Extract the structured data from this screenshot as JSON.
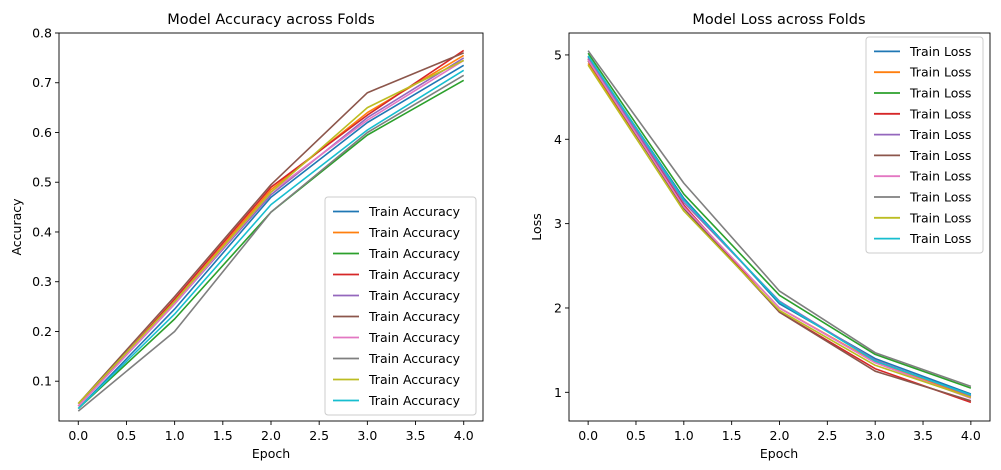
{
  "chart_data": [
    {
      "type": "line",
      "title": "Model Accuracy across Folds",
      "xlabel": "Epoch",
      "ylabel": "Accuracy",
      "xlim": [
        -0.2,
        4.2
      ],
      "ylim": [
        0.02,
        0.8
      ],
      "xticks": [
        "0.0",
        "0.5",
        "1.0",
        "1.5",
        "2.0",
        "2.5",
        "3.0",
        "3.5",
        "4.0"
      ],
      "yticks": [
        "0.1",
        "0.2",
        "0.3",
        "0.4",
        "0.5",
        "0.6",
        "0.7",
        "0.8"
      ],
      "grid": false,
      "legend_position": "lower-right",
      "x": [
        0,
        1,
        2,
        3,
        4
      ],
      "series": [
        {
          "name": "Train Accuracy",
          "color": "#1f77b4",
          "values": [
            0.045,
            0.245,
            0.47,
            0.62,
            0.735
          ]
        },
        {
          "name": "Train Accuracy",
          "color": "#ff7f0e",
          "values": [
            0.055,
            0.26,
            0.485,
            0.64,
            0.755
          ]
        },
        {
          "name": "Train Accuracy",
          "color": "#2ca02c",
          "values": [
            0.045,
            0.225,
            0.44,
            0.595,
            0.705
          ]
        },
        {
          "name": "Train Accuracy",
          "color": "#d62728",
          "values": [
            0.05,
            0.265,
            0.49,
            0.635,
            0.765
          ]
        },
        {
          "name": "Train Accuracy",
          "color": "#9467bd",
          "values": [
            0.05,
            0.255,
            0.475,
            0.63,
            0.75
          ]
        },
        {
          "name": "Train Accuracy",
          "color": "#8c564b",
          "values": [
            0.055,
            0.27,
            0.495,
            0.68,
            0.76
          ]
        },
        {
          "name": "Train Accuracy",
          "color": "#e377c2",
          "values": [
            0.05,
            0.255,
            0.48,
            0.625,
            0.745
          ]
        },
        {
          "name": "Train Accuracy",
          "color": "#7f7f7f",
          "values": [
            0.04,
            0.2,
            0.44,
            0.6,
            0.715
          ]
        },
        {
          "name": "Train Accuracy",
          "color": "#bcbd22",
          "values": [
            0.055,
            0.26,
            0.48,
            0.65,
            0.745
          ]
        },
        {
          "name": "Train Accuracy",
          "color": "#17becf",
          "values": [
            0.045,
            0.235,
            0.455,
            0.605,
            0.725
          ]
        }
      ]
    },
    {
      "type": "line",
      "title": "Model Loss across Folds",
      "xlabel": "Epoch",
      "ylabel": "Loss",
      "xlim": [
        -0.2,
        4.2
      ],
      "ylim": [
        0.66,
        5.26
      ],
      "xticks": [
        "0.0",
        "0.5",
        "1.0",
        "1.5",
        "2.0",
        "2.5",
        "3.0",
        "3.5",
        "4.0"
      ],
      "yticks": [
        "1",
        "2",
        "3",
        "4",
        "5"
      ],
      "grid": false,
      "legend_position": "upper-right",
      "x": [
        0,
        1,
        2,
        3,
        4
      ],
      "series": [
        {
          "name": "Train Loss",
          "color": "#1f77b4",
          "values": [
            4.98,
            3.3,
            2.05,
            1.4,
            0.98
          ]
        },
        {
          "name": "Train Loss",
          "color": "#ff7f0e",
          "values": [
            4.9,
            3.2,
            2.0,
            1.36,
            0.95
          ]
        },
        {
          "name": "Train Loss",
          "color": "#2ca02c",
          "values": [
            5.02,
            3.35,
            2.15,
            1.45,
            1.05
          ]
        },
        {
          "name": "Train Loss",
          "color": "#d62728",
          "values": [
            4.95,
            3.22,
            1.95,
            1.28,
            0.88
          ]
        },
        {
          "name": "Train Loss",
          "color": "#9467bd",
          "values": [
            4.96,
            3.25,
            2.08,
            1.38,
            0.96
          ]
        },
        {
          "name": "Train Loss",
          "color": "#8c564b",
          "values": [
            4.93,
            3.18,
            1.95,
            1.25,
            0.9
          ]
        },
        {
          "name": "Train Loss",
          "color": "#e377c2",
          "values": [
            4.94,
            3.2,
            2.0,
            1.35,
            0.93
          ]
        },
        {
          "name": "Train Loss",
          "color": "#7f7f7f",
          "values": [
            5.05,
            3.48,
            2.2,
            1.47,
            1.07
          ]
        },
        {
          "name": "Train Loss",
          "color": "#bcbd22",
          "values": [
            4.88,
            3.15,
            1.97,
            1.32,
            0.94
          ]
        },
        {
          "name": "Train Loss",
          "color": "#17becf",
          "values": [
            4.99,
            3.28,
            2.07,
            1.37,
            0.97
          ]
        }
      ]
    }
  ]
}
